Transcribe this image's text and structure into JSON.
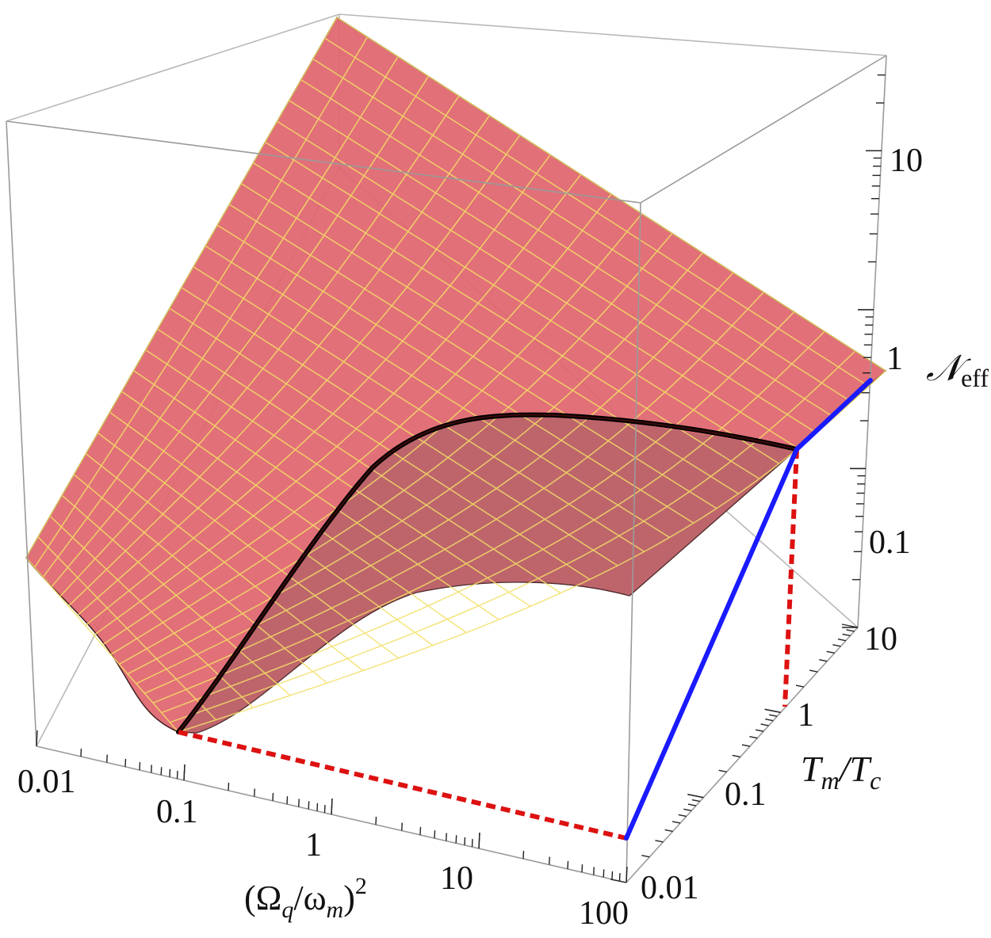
{
  "chart_data": {
    "type": "surface",
    "x_axis": {
      "label_base": "(Ω",
      "label_sub1": "q",
      "label_mid": "/ω",
      "label_sub2": "m",
      "label_end": ")",
      "label_exp": "2",
      "scale": "log",
      "ticks": [
        "0.01",
        "0.1",
        "1",
        "10",
        "100"
      ],
      "range": [
        0.01,
        100
      ]
    },
    "y_axis": {
      "label_main1": "T",
      "label_sub1": "m",
      "label_mid": "/T",
      "label_sub2": "c",
      "scale": "log",
      "ticks": [
        "0.01",
        "0.1",
        "1",
        "10"
      ],
      "range": [
        0.01,
        10
      ]
    },
    "z_axis": {
      "label_main": "𝒩",
      "label_sub": "eff",
      "scale": "log",
      "ticks": [
        "0.1",
        "1",
        "10"
      ],
      "range": [
        0.012,
        50
      ]
    },
    "surface_color": "#e0656e",
    "mesh_color": "#f3e067",
    "overlays": {
      "highlight_curve_color": "#000000",
      "dashed_color": "#dd1111",
      "projection_color": "#1a1aff",
      "marked_point": {
        "x": 0.1,
        "y": 1
      }
    }
  }
}
